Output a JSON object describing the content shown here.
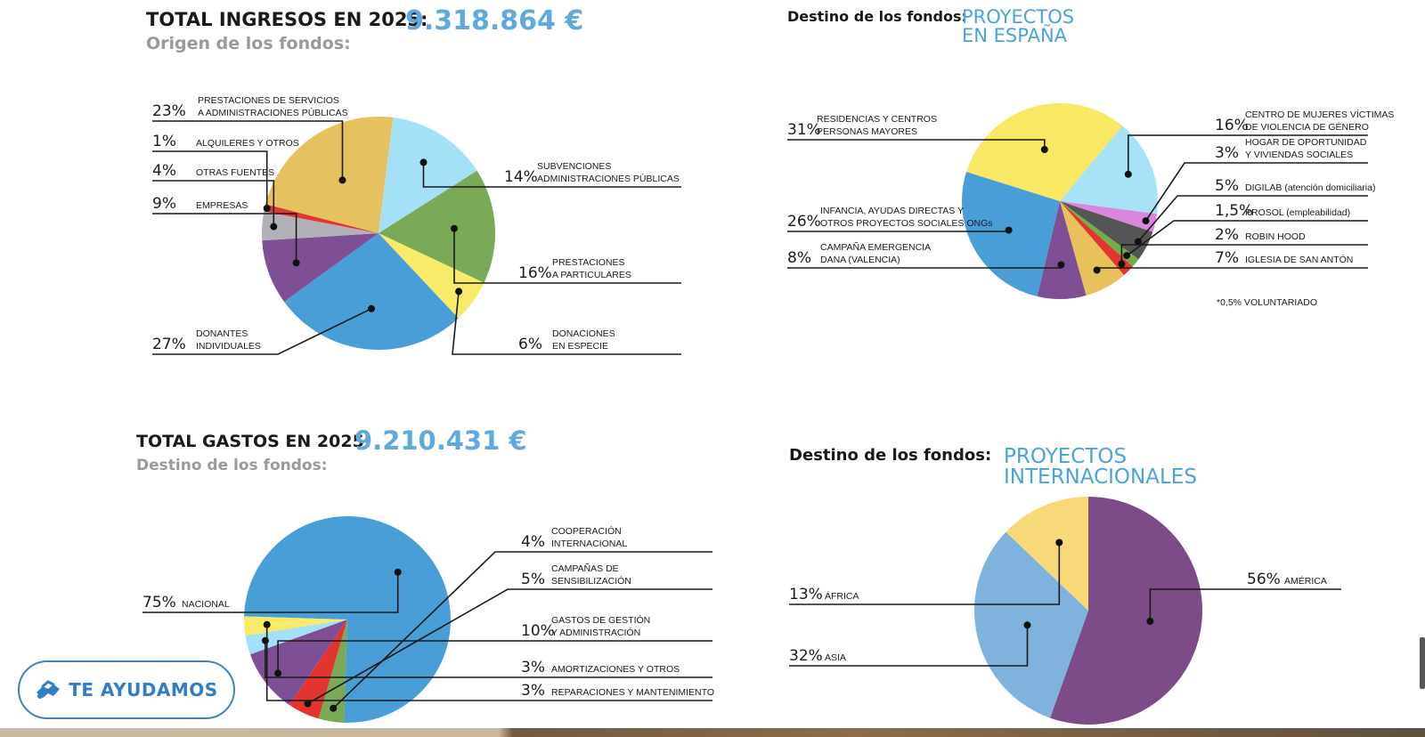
{
  "ingresos": {
    "title": "TOTAL INGRESOS EN 2025:",
    "amount": "9.318.864 €",
    "subtitle": "Origen de los fondos:"
  },
  "espana": {
    "heading": "Destino de los fondos:",
    "title_line1": "PROYECTOS",
    "title_line2": "EN ESPAÑA",
    "footnote": "*0,5% VOLUNTARIADO"
  },
  "gastos": {
    "title": "TOTAL GASTOS EN 2025:",
    "amount": "9.210.431 €",
    "subtitle": "Destino de los fondos:"
  },
  "internacional": {
    "heading": "Destino de los fondos:",
    "title_line1": "PROYECTOS",
    "title_line2": "INTERNACIONALES"
  },
  "cta": {
    "label": "TE AYUDAMOS",
    "icon": "hands-icon"
  },
  "chart_data": [
    {
      "id": "ingresos",
      "type": "pie",
      "title": "Origen de los fondos:",
      "slices": [
        {
          "label": "PRESTACIONES DE SERVICIOS A ADMINISTRACIONES PÚBLICAS",
          "lines": [
            "PRESTACIONES DE SERVICIOS",
            "A ADMINISTRACIONES PÚBLICAS"
          ],
          "pct_text": "23%",
          "value": 23,
          "color": "#e6c160"
        },
        {
          "label": "SUBVENCIONES ADMINISTRACIONES PÚBLICAS",
          "lines": [
            "SUBVENCIONES",
            "ADMINISTRACIONES PÚBLICAS"
          ],
          "pct_text": "14%",
          "value": 14,
          "color": "#a4e0f7"
        },
        {
          "label": "PRESTACIONES A PARTICULARES",
          "lines": [
            "PRESTACIONES",
            "A PARTICULARES"
          ],
          "pct_text": "16%",
          "value": 16,
          "color": "#7aa958"
        },
        {
          "label": "DONACIONES EN ESPECIE",
          "lines": [
            "DONACIONES",
            "EN ESPECIE"
          ],
          "pct_text": "6%",
          "value": 6,
          "color": "#f8eb6a"
        },
        {
          "label": "DONANTES INDIVIDUALES",
          "lines": [
            "DONANTES",
            "INDIVIDUALES"
          ],
          "pct_text": "27%",
          "value": 27,
          "color": "#4a9ed8"
        },
        {
          "label": "EMPRESAS",
          "lines": [
            "EMPRESAS"
          ],
          "pct_text": "9%",
          "value": 9,
          "color": "#7e4f95"
        },
        {
          "label": "OTRAS FUENTES",
          "lines": [
            "OTRAS FUENTES"
          ],
          "pct_text": "4%",
          "value": 4,
          "color": "#b3b1b8"
        },
        {
          "label": "ALQUILERES Y OTROS",
          "lines": [
            "ALQUILERES Y OTROS"
          ],
          "pct_text": "1%",
          "value": 1,
          "color": "#e2352f"
        }
      ]
    },
    {
      "id": "espana",
      "type": "pie",
      "title": "PROYECTOS EN ESPAÑA",
      "slices": [
        {
          "label": "CENTRO DE MUJERES VÍCTIMAS DE VIOLENCIA DE GÉNERO",
          "lines": [
            "CENTRO DE MUJERES VÍCTIMAS",
            "DE VIOLENCIA DE GÉNERO"
          ],
          "pct_text": "16%",
          "value": 16,
          "color": "#a8e2f7"
        },
        {
          "label": "HOGAR DE OPORTUNIDAD Y VIVIENDAS SOCIALES",
          "lines": [
            "HOGAR DE OPORTUNIDAD",
            "Y VIVIENDAS SOCIALES"
          ],
          "pct_text": "3%",
          "value": 3,
          "color": "#d887dc"
        },
        {
          "label": "DIGILAB (atención domiciliaria)",
          "lines": [
            "DIGILAB (atención domiciliaria)"
          ],
          "pct_text": "5%",
          "value": 5,
          "color": "#555555"
        },
        {
          "label": "PROSOL (empleabilidad)",
          "lines": [
            "PROSOL (empleabilidad)"
          ],
          "pct_text": "1,5%",
          "value": 1.5,
          "color": "#6fb04a"
        },
        {
          "label": "ROBIN HOOD",
          "lines": [
            "ROBIN HOOD"
          ],
          "pct_text": "2%",
          "value": 2,
          "color": "#e2352f"
        },
        {
          "label": "IGLESIA DE SAN ANTÓN",
          "lines": [
            "IGLESIA DE SAN ANTÓN"
          ],
          "pct_text": "7%",
          "value": 7,
          "color": "#e8c05c"
        },
        {
          "label": "CAMPAÑA EMERGENCIA DANA (VALENCIA)",
          "lines": [
            "CAMPAÑA EMERGENCIA",
            "DANA (VALENCIA)"
          ],
          "pct_text": "8%",
          "value": 8,
          "color": "#7e4f95"
        },
        {
          "label": "INFANCIA, AYUDAS DIRECTAS Y OTROS PROYECTOS SOCIALES ONGs",
          "lines": [
            "INFANCIA, AYUDAS DIRECTAS  Y",
            "OTROS PROYECTOS SOCIALES ONGs"
          ],
          "pct_text": "26%",
          "value": 26,
          "color": "#4a9ed8"
        },
        {
          "label": "RESIDENCIAS Y CENTROS PERSONAS MAYORES",
          "lines": [
            "RESIDENCIAS Y CENTROS",
            "PERSONAS MAYORES"
          ],
          "pct_text": "31%",
          "value": 31,
          "color": "#f8e863"
        }
      ]
    },
    {
      "id": "gastos",
      "type": "pie",
      "title": "Destino de los fondos:",
      "slices": [
        {
          "label": "COOPERACIÓN INTERNACIONAL",
          "lines": [
            "COOPERACIÓN",
            "INTERNACIONAL"
          ],
          "pct_text": "4%",
          "value": 4,
          "color": "#7aa958"
        },
        {
          "label": "CAMPAÑAS DE SENSIBILIZACIÓN",
          "lines": [
            "CAMPAÑAS DE",
            "SENSIBILIZACIÓN"
          ],
          "pct_text": "5%",
          "value": 5,
          "color": "#e2352f"
        },
        {
          "label": "GASTOS DE GESTIÓN Y ADMINISTRACIÓN",
          "lines": [
            "GASTOS DE GESTIÓN",
            "Y ADMINISTRACIÓN"
          ],
          "pct_text": "10%",
          "value": 10,
          "color": "#7e4f95"
        },
        {
          "label": "AMORTIZACIONES Y OTROS",
          "lines": [
            "AMORTIZACIONES Y OTROS"
          ],
          "pct_text": "3%",
          "value": 3,
          "color": "#a4e0f7"
        },
        {
          "label": "REPARACIONES Y MANTENIMIENTO",
          "lines": [
            "REPARACIONES Y MANTENIMIENTO"
          ],
          "pct_text": "3%",
          "value": 3,
          "color": "#f8eb6a"
        },
        {
          "label": "NACIONAL",
          "lines": [
            "NACIONAL"
          ],
          "pct_text": "75%",
          "value": 75,
          "color": "#4a9ed8"
        }
      ]
    },
    {
      "id": "internacional",
      "type": "pie",
      "title": "PROYECTOS INTERNACIONALES",
      "slices": [
        {
          "label": "AMÉRICA",
          "lines": [
            "AMÉRICA"
          ],
          "pct_text": "56%",
          "value": 56,
          "color": "#7d4b88"
        },
        {
          "label": "ASIA",
          "lines": [
            "ASIA"
          ],
          "pct_text": "32%",
          "value": 32,
          "color": "#7fb3de"
        },
        {
          "label": "ÁFRICA",
          "lines": [
            "ÁFRICA"
          ],
          "pct_text": "13%",
          "value": 13,
          "color": "#f8d97a"
        }
      ]
    }
  ]
}
